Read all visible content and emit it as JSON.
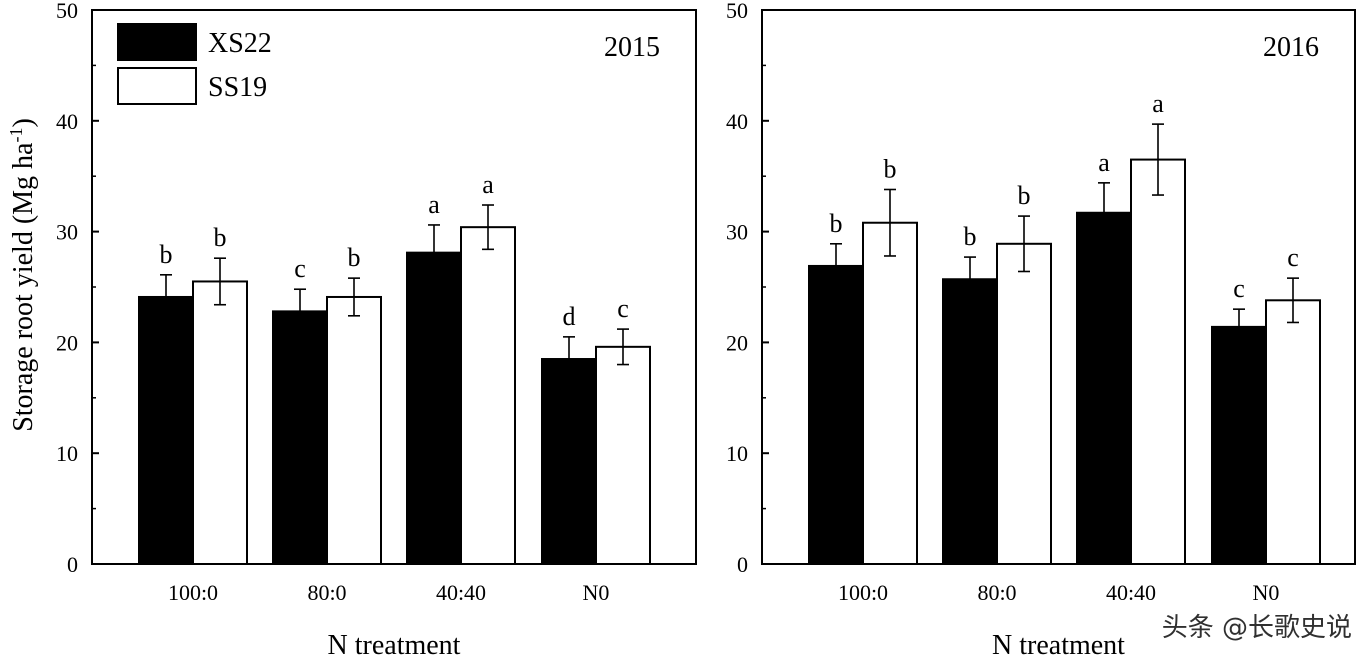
{
  "chart_data": [
    {
      "type": "bar",
      "title": "2015",
      "xlabel": "N treatment",
      "ylabel": "Storage root yield (Mg ha",
      "ylabel_sup": "-1",
      "ylabel_close": ")",
      "ylim": [
        0,
        50
      ],
      "yticks": [
        0,
        10,
        20,
        30,
        40,
        50
      ],
      "categories": [
        "100:0",
        "80:0",
        "40:40",
        "N0"
      ],
      "legend_position": "top-left",
      "series": [
        {
          "name": "XS22",
          "color": "#000000",
          "values": [
            24.1,
            22.8,
            28.1,
            18.5
          ],
          "errors": [
            2.0,
            2.0,
            2.5,
            2.0
          ],
          "letters": [
            "b",
            "c",
            "a",
            "d"
          ]
        },
        {
          "name": "SS19",
          "color": "#ffffff",
          "values": [
            25.5,
            24.1,
            30.4,
            19.6
          ],
          "errors": [
            2.1,
            1.7,
            2.0,
            1.6
          ],
          "letters": [
            "b",
            "b",
            "a",
            "c"
          ]
        }
      ]
    },
    {
      "type": "bar",
      "title": "2016",
      "xlabel": "N treatment",
      "ylabel": "",
      "ylim": [
        0,
        50
      ],
      "yticks": [
        0,
        10,
        20,
        30,
        40,
        50
      ],
      "categories": [
        "100:0",
        "80:0",
        "40:40",
        "N0"
      ],
      "series": [
        {
          "name": "XS22",
          "color": "#000000",
          "values": [
            26.9,
            25.7,
            31.7,
            21.4
          ],
          "errors": [
            2.0,
            2.0,
            2.7,
            1.6
          ],
          "letters": [
            "b",
            "b",
            "a",
            "c"
          ]
        },
        {
          "name": "SS19",
          "color": "#ffffff",
          "values": [
            30.8,
            28.9,
            36.5,
            23.8
          ],
          "errors": [
            3.0,
            2.5,
            3.2,
            2.0
          ],
          "letters": [
            "b",
            "b",
            "a",
            "c"
          ]
        }
      ]
    }
  ],
  "watermark": "头条 @长歌史说"
}
